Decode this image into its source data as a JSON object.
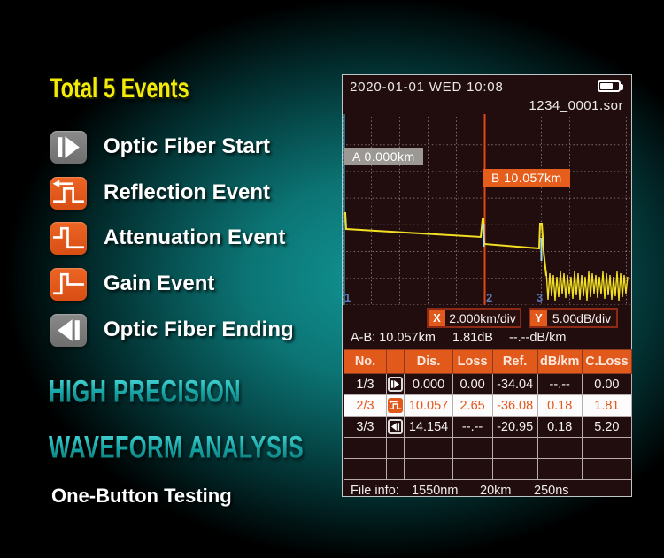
{
  "left_panel": {
    "title": "Total 5 Events",
    "events": [
      {
        "icon": "fiber-start-icon",
        "label": "Optic Fiber Start"
      },
      {
        "icon": "reflection-icon",
        "label": "Reflection Event"
      },
      {
        "icon": "attenuation-icon",
        "label": "Attenuation Event"
      },
      {
        "icon": "gain-icon",
        "label": "Gain Event"
      },
      {
        "icon": "fiber-end-icon",
        "label": "Optic Fiber Ending"
      }
    ],
    "tagline1": "HIGH PRECISION",
    "tagline2": "WAVEFORM ANALYSIS",
    "tagline3": "One-Button Testing",
    "colors": {
      "title_yellow": "#f2ea08",
      "tagline_teal": "#17a6a6",
      "icon_orange": "#e2591c",
      "icon_gray": "#7d7d7d"
    }
  },
  "screen": {
    "status": {
      "datetime": "2020-01-01 WED  10:08",
      "battery": "battery-icon ~70%"
    },
    "filename": "1234_0001.sor",
    "graph": {
      "marker_a_label": "A  0.000km",
      "marker_b_label": "B  10.057km",
      "event_markers": [
        {
          "num": "1",
          "km": "0.000"
        },
        {
          "num": "2",
          "km": "10.057"
        },
        {
          "num": "3",
          "km": "14.154"
        }
      ],
      "x_scale_badge": "X",
      "x_scale_value": "2.000km/div",
      "y_scale_badge": "Y",
      "y_scale_value": "5.00dB/div"
    },
    "ab_summary": {
      "distance": "A-B: 10.057km",
      "loss": "1.81dB",
      "slope": "--.--dB/km"
    },
    "table": {
      "headers": [
        "No.",
        "",
        "Dis.",
        "Loss",
        "Ref.",
        "dB/km",
        "C.Loss"
      ],
      "rows": [
        {
          "no": "1/3",
          "icon": "fiber-start-icon",
          "dis": "0.000",
          "loss": "0.00",
          "ref": "-34.04",
          "dbkm": "--.--",
          "closs": "0.00",
          "selected": false
        },
        {
          "no": "2/3",
          "icon": "reflection-icon",
          "dis": "10.057",
          "loss": "2.65",
          "ref": "-36.08",
          "dbkm": "0.18",
          "closs": "1.81",
          "selected": true
        },
        {
          "no": "3/3",
          "icon": "fiber-end-icon",
          "dis": "14.154",
          "loss": "--.--",
          "ref": "-20.95",
          "dbkm": "0.18",
          "closs": "5.20",
          "selected": false
        }
      ]
    },
    "file_info": {
      "label": "File info:",
      "wavelength": "1550nm",
      "range": "20km",
      "pulse": "250ns"
    },
    "colors": {
      "accent_orange": "#e2591c",
      "screen_bg": "#210d0d",
      "trace_yellow": "#f2df22",
      "marker_a_line": "#2fc4e4",
      "marker_b_line": "#df4718",
      "marker_num_blue": "#5b7ab8",
      "selected_row_bg": "#fcfcfc",
      "scale_border_red": "#8c2a16"
    }
  }
}
